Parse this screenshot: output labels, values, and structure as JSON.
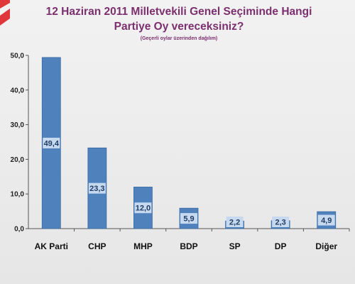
{
  "chart_data": {
    "type": "bar",
    "title_lines": [
      "12 Haziran 2011 Milletvekili Genel Seçiminde Hangi",
      "Partiye Oy vereceksiniz?"
    ],
    "subtitle": "(Geçerli oylar üzerinden dağılım)",
    "categories": [
      "AK Parti",
      "CHP",
      "MHP",
      "BDP",
      "SP",
      "DP",
      "Diğer"
    ],
    "values": [
      49.4,
      23.3,
      12.0,
      5.9,
      2.2,
      2.3,
      4.9
    ],
    "value_labels": [
      "49,4",
      "23,3",
      "12,0",
      "5,9",
      "2,2",
      "2,3",
      "4,9"
    ],
    "yticks": [
      0,
      10,
      20,
      30,
      40,
      50
    ],
    "ytick_labels": [
      "0,0",
      "10,0",
      "20,0",
      "30,0",
      "40,0",
      "50,0"
    ],
    "ylim": [
      0,
      50
    ],
    "grid": false,
    "legend": "none",
    "bar_color": "#4f81bd",
    "label_bg": "#c6d9ef",
    "accent_color": "#e0373a"
  }
}
